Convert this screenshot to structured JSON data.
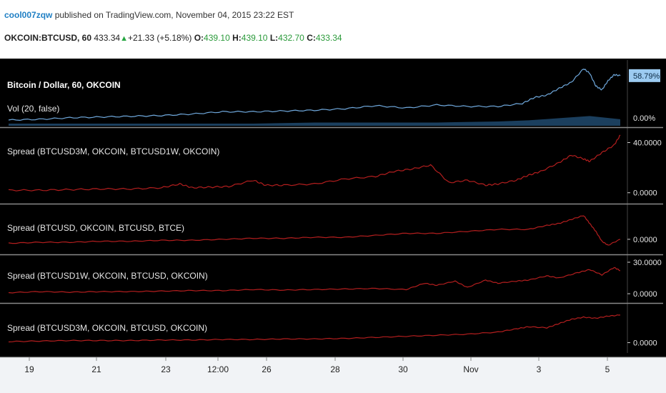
{
  "header": {
    "author": "cool007zqw",
    "published": " published on TradingView.com, November 04, 2015 23:22 EST",
    "symbol": "OKCOIN:BTCUSD, 60",
    "price": "433.34",
    "change": "+21.33 (+5.18%)",
    "open_label": "O:",
    "open": "439.10",
    "high_label": "H:",
    "high": "439.10",
    "low_label": "L:",
    "low": "432.70",
    "close_label": "C:",
    "close": "433.34"
  },
  "colors": {
    "background": "#000000",
    "price_line": "#6fa8dc",
    "volume": "#1b3f5e",
    "spread_line": "#b41e1e",
    "axis_text": "#e6e6e6",
    "price_badge": "#9ccbf1"
  },
  "x_axis": {
    "ticks": [
      "19",
      "21",
      "23",
      "12:00",
      "26",
      "28",
      "30",
      "Nov",
      "3",
      "5"
    ]
  },
  "chart_data": [
    {
      "type": "line",
      "title": "Bitcoin / Dollar, 60, OKCOIN",
      "indicator_label": "Vol (20, false)",
      "price_badge": "58.79%",
      "y_tick_labels": [
        "0.00%"
      ],
      "ylim": [
        0,
        70
      ],
      "series": [
        {
          "x": [
            0,
            0.05,
            0.1,
            0.15,
            0.2,
            0.25,
            0.3,
            0.35,
            0.4,
            0.45,
            0.5,
            0.55,
            0.6,
            0.65,
            0.7,
            0.75,
            0.8,
            0.84,
            0.86,
            0.88,
            0.9,
            0.92,
            0.94,
            0.95,
            0.96,
            0.97,
            0.98,
            0.99,
            1.0
          ],
          "values": [
            0,
            1,
            3,
            4,
            5,
            6,
            8,
            11,
            11,
            12,
            13,
            15,
            19,
            16,
            20,
            18,
            18,
            22,
            30,
            33,
            42,
            50,
            68,
            62,
            45,
            40,
            52,
            60,
            58.79
          ]
        }
      ],
      "volume": {
        "x": [
          0,
          0.1,
          0.2,
          0.3,
          0.4,
          0.5,
          0.6,
          0.7,
          0.8,
          0.85,
          0.9,
          0.95,
          1.0
        ],
        "values": [
          2,
          2,
          2,
          2,
          2,
          3,
          3,
          3,
          4,
          5,
          7,
          9,
          6
        ]
      }
    },
    {
      "type": "line",
      "title": "Spread (BTCUSD3M, OKCOIN, BTCUSD1W, OKCOIN)",
      "y_tick_labels": [
        "40.0000",
        "0.0000"
      ],
      "ylim": [
        -3,
        46
      ],
      "series": [
        {
          "x": [
            0,
            0.05,
            0.1,
            0.15,
            0.2,
            0.25,
            0.28,
            0.3,
            0.33,
            0.36,
            0.4,
            0.42,
            0.45,
            0.5,
            0.55,
            0.6,
            0.63,
            0.66,
            0.69,
            0.72,
            0.75,
            0.78,
            0.8,
            0.83,
            0.85,
            0.87,
            0.9,
            0.92,
            0.94,
            0.95,
            0.97,
            0.99,
            1.0
          ],
          "values": [
            2,
            2,
            2.5,
            3,
            3,
            4,
            7,
            4,
            4.5,
            5,
            10,
            6,
            6,
            7,
            11,
            13,
            17,
            19,
            22,
            8,
            10,
            6,
            7,
            10,
            14,
            17,
            24,
            30,
            27,
            25,
            32,
            38,
            46
          ]
        }
      ]
    },
    {
      "type": "line",
      "title": "Spread (BTCUSD, OKCOIN, BTCUSD, BTCE)",
      "y_tick_labels": [
        "0.0000"
      ],
      "ylim": [
        -4,
        14
      ],
      "series": [
        {
          "x": [
            0,
            0.05,
            0.1,
            0.15,
            0.2,
            0.25,
            0.3,
            0.35,
            0.4,
            0.45,
            0.5,
            0.55,
            0.6,
            0.65,
            0.7,
            0.75,
            0.8,
            0.85,
            0.88,
            0.9,
            0.92,
            0.94,
            0.95,
            0.96,
            0.97,
            0.98,
            1.0
          ],
          "values": [
            -2,
            -1.5,
            -1.5,
            -1,
            -1,
            -0.5,
            -0.5,
            0,
            0.5,
            0.5,
            1,
            1,
            2,
            3,
            3,
            4,
            5,
            5,
            7,
            8,
            10,
            12,
            8,
            4,
            -1,
            -3,
            0
          ]
        }
      ]
    },
    {
      "type": "line",
      "title": "Spread (BTCUSD1W, OKCOIN, BTCUSD, OKCOIN)",
      "y_tick_labels": [
        "30.0000",
        "0.0000"
      ],
      "ylim": [
        -2,
        30
      ],
      "series": [
        {
          "x": [
            0,
            0.05,
            0.1,
            0.15,
            0.2,
            0.25,
            0.3,
            0.35,
            0.4,
            0.45,
            0.5,
            0.55,
            0.6,
            0.65,
            0.68,
            0.7,
            0.73,
            0.75,
            0.78,
            0.8,
            0.83,
            0.85,
            0.88,
            0.9,
            0.93,
            0.95,
            0.97,
            0.99,
            1.0
          ],
          "values": [
            1,
            2,
            1.5,
            2,
            2,
            2.5,
            3,
            3,
            4,
            3.5,
            4,
            4.5,
            5,
            4,
            10,
            8,
            12,
            6,
            13,
            10,
            12,
            13,
            17,
            15,
            20,
            23,
            18,
            25,
            22
          ]
        }
      ]
    },
    {
      "type": "line",
      "title": "Spread (BTCUSD3M, OKCOIN, BTCUSD, OKCOIN)",
      "y_tick_labels": [
        "0.0000"
      ],
      "ylim": [
        -3,
        30
      ],
      "series": [
        {
          "x": [
            0,
            0.05,
            0.1,
            0.15,
            0.2,
            0.25,
            0.3,
            0.35,
            0.4,
            0.45,
            0.5,
            0.55,
            0.6,
            0.65,
            0.7,
            0.75,
            0.8,
            0.83,
            0.85,
            0.88,
            0.9,
            0.92,
            0.94,
            0.96,
            0.98,
            1.0
          ],
          "values": [
            1,
            1.5,
            2,
            2,
            2,
            2.5,
            2.5,
            3,
            3,
            3.5,
            3.5,
            4,
            5,
            6,
            7,
            8,
            10,
            13,
            15,
            14,
            18,
            22,
            24,
            23,
            25,
            26
          ]
        }
      ]
    }
  ]
}
